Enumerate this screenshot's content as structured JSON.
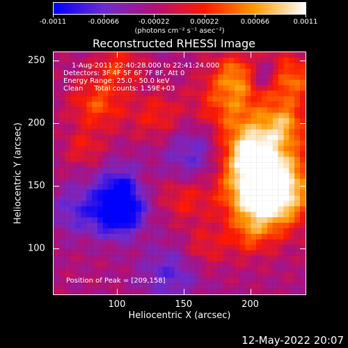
{
  "chart_data": {
    "type": "heatmap",
    "title": "Reconstructed RHESSI Image",
    "xlabel": "Heliocentric X (arcsec)",
    "ylabel": "Heliocentric Y (arcsec)",
    "xlim": [
      52,
      242
    ],
    "ylim": [
      63,
      257
    ],
    "xticks": [
      100,
      150,
      200
    ],
    "yticks": [
      100,
      150,
      200,
      250
    ],
    "colorbar": {
      "range": [
        -0.0011,
        0.0011
      ],
      "tick_labels": [
        "-0.0011",
        "-0.00066",
        "-0.00022",
        "0.00022",
        "0.00066",
        "0.0011"
      ],
      "units": "(photons cm⁻² s⁻¹ asec⁻²)",
      "colormap": [
        "#0000ff",
        "#6f2bd0",
        "#b0107a",
        "#ff1a00",
        "#ff9a00",
        "#ffffff"
      ]
    },
    "annotations": {
      "time_range": "1-Aug-2011 22:40:28.000 to 22:41:24.000",
      "detectors": "Detectors: 3F 4F 5F 6F 7F 8F, Att 0",
      "energy_range": "Energy Range: 25.0 - 50.0 keV",
      "clean_info": "Clean     Total counts: 1.59E+03",
      "peak_position": "Position of Peak = [209,158]"
    },
    "peak": [
      209,
      158
    ]
  },
  "footer": {
    "timestamp": "12-May-2022 20:07"
  }
}
